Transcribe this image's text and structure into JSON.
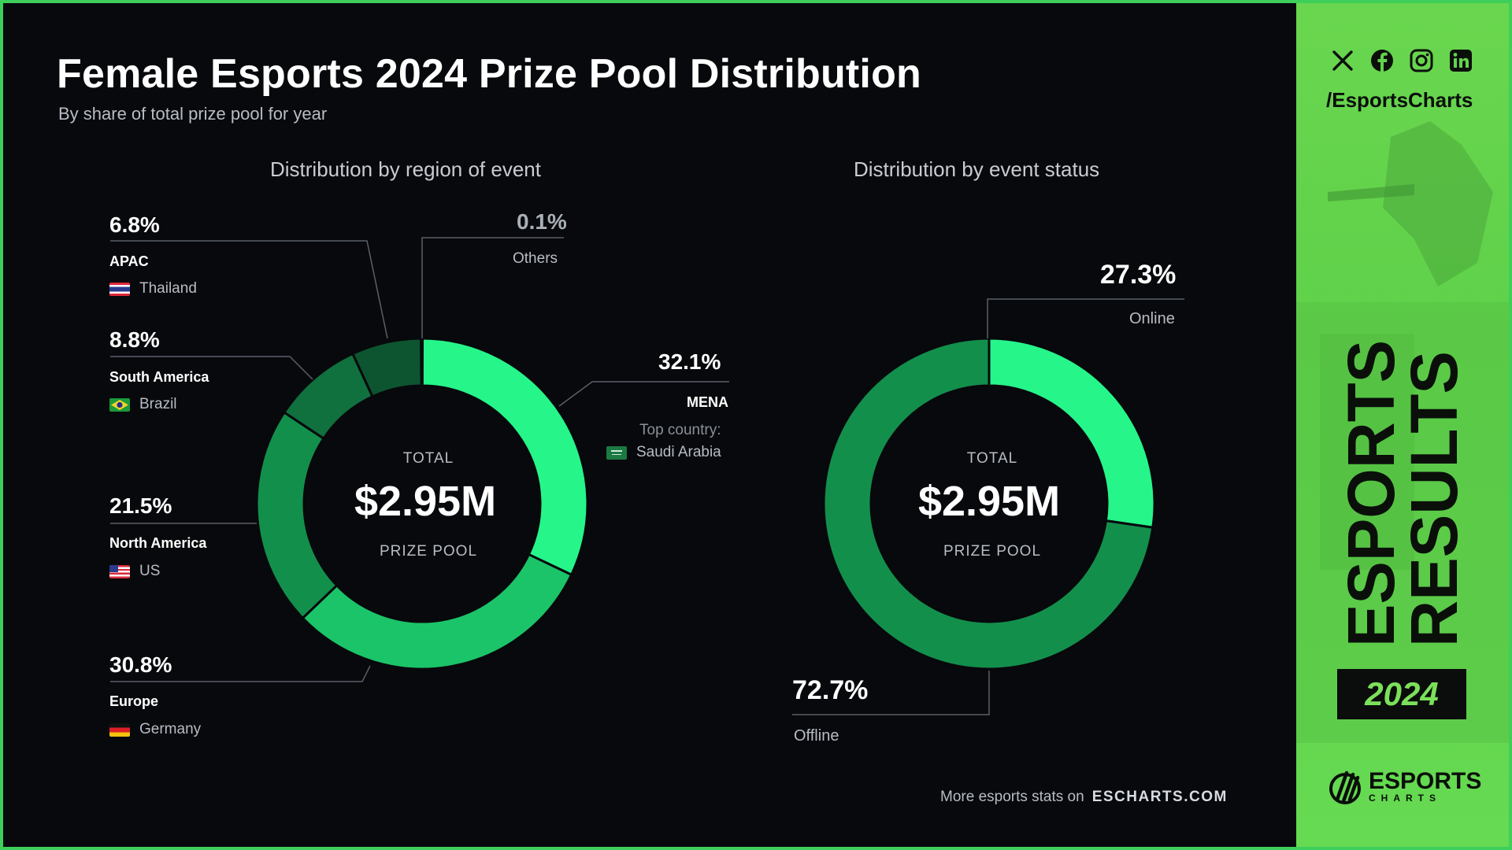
{
  "title": "Female Esports 2024 Prize Pool Distribution",
  "subtitle": "By share of total prize pool for year",
  "footer": {
    "text": "More esports stats on",
    "site": "ESCHARTS.COM"
  },
  "sidebar": {
    "handle": "/EsportsCharts",
    "vertical_word_1": "ESPORTS",
    "vertical_word_2": "RESULTS",
    "year": "2024",
    "brand_name": "ESPORTS",
    "brand_sub": "CHARTS",
    "social_icons": [
      "x-icon",
      "facebook-icon",
      "instagram-icon",
      "linkedin-icon"
    ]
  },
  "chart_data": [
    {
      "type": "pie",
      "title": "Distribution by region of event",
      "center": {
        "top": "TOTAL",
        "value": "$2.95M",
        "bottom": "PRIZE POOL"
      },
      "slices": [
        {
          "name": "MENA",
          "value": 32.1,
          "label": "32.1%",
          "sub_label": "Top country:",
          "country": "Saudi Arabia",
          "color": "#26f58a"
        },
        {
          "name": "Europe",
          "value": 30.8,
          "label": "30.8%",
          "country": "Germany",
          "color": "#1bc468"
        },
        {
          "name": "North America",
          "value": 21.5,
          "label": "21.5%",
          "country": "US",
          "color": "#138f4c"
        },
        {
          "name": "South America",
          "value": 8.8,
          "label": "8.8%",
          "country": "Brazil",
          "color": "#10713e"
        },
        {
          "name": "APAC",
          "value": 6.8,
          "label": "6.8%",
          "country": "Thailand",
          "color": "#0c5530"
        },
        {
          "name": "Others",
          "value": 0.1,
          "label": "0.1%",
          "color": "#0a3f24"
        }
      ]
    },
    {
      "type": "pie",
      "title": "Distribution by event status",
      "center": {
        "top": "TOTAL",
        "value": "$2.95M",
        "bottom": "PRIZE POOL"
      },
      "slices": [
        {
          "name": "Online",
          "value": 27.3,
          "label": "27.3%",
          "color": "#26f58a"
        },
        {
          "name": "Offline",
          "value": 72.7,
          "label": "72.7%",
          "color": "#138f4c"
        }
      ]
    }
  ]
}
